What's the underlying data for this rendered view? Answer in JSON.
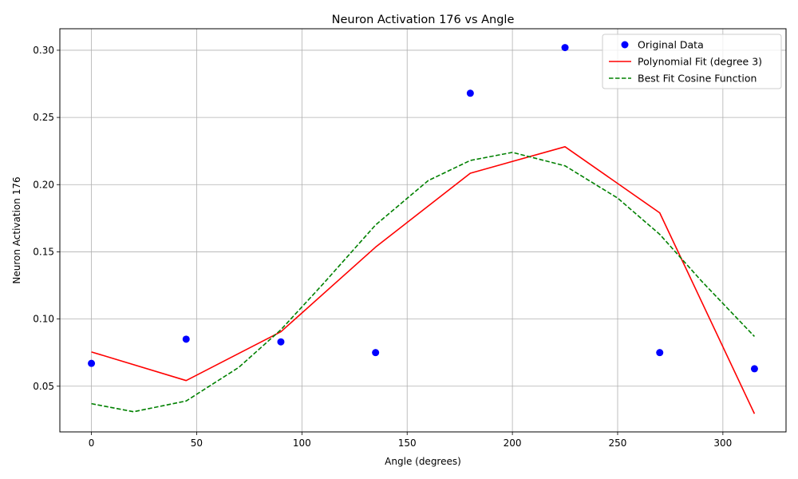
{
  "chart_data": {
    "type": "line",
    "title": "Neuron Activation 176 vs Angle",
    "xlabel": "Angle (degrees)",
    "ylabel": "Neuron Activation 176",
    "xlim": [
      -15,
      330
    ],
    "ylim": [
      0.016,
      0.316
    ],
    "x_ticks": [
      0,
      50,
      100,
      150,
      200,
      250,
      300
    ],
    "y_ticks": [
      0.05,
      0.1,
      0.15,
      0.2,
      0.25,
      0.3
    ],
    "x_tick_labels": [
      "0",
      "50",
      "100",
      "150",
      "200",
      "250",
      "300"
    ],
    "y_tick_labels": [
      "0.05",
      "0.10",
      "0.15",
      "0.20",
      "0.25",
      "0.30"
    ],
    "grid": true,
    "legend_position": "top-right",
    "series": [
      {
        "name": "Original Data",
        "kind": "scatter",
        "color": "#0000ff",
        "x": [
          0,
          45,
          90,
          135,
          180,
          225,
          270,
          315
        ],
        "y": [
          0.067,
          0.085,
          0.083,
          0.075,
          0.268,
          0.302,
          0.075,
          0.063
        ]
      },
      {
        "name": "Polynomial Fit (degree 3)",
        "kind": "line",
        "style": "solid",
        "color": "#ff0000",
        "x": [
          0,
          45,
          90,
          135,
          180,
          225,
          270,
          315
        ],
        "y": [
          0.0755,
          0.0542,
          0.0905,
          0.1535,
          0.2085,
          0.2282,
          0.179,
          0.0295
        ]
      },
      {
        "name": "Best Fit Cosine Function",
        "kind": "line",
        "style": "dashed",
        "color": "#008000",
        "x": [
          0,
          20,
          45,
          70,
          90,
          110,
          135,
          160,
          180,
          200,
          225,
          250,
          270,
          290,
          315
        ],
        "y": [
          0.037,
          0.031,
          0.039,
          0.064,
          0.092,
          0.126,
          0.17,
          0.203,
          0.218,
          0.224,
          0.214,
          0.19,
          0.163,
          0.128,
          0.087
        ]
      }
    ]
  }
}
